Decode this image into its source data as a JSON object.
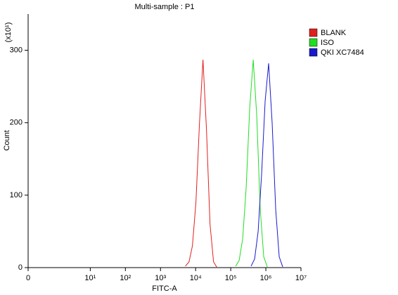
{
  "chart_data": {
    "type": "line",
    "title": "Multi-sample : P1",
    "x_label": "FITC-A",
    "y_label": "Count",
    "y_multiplier": "(x10¹)",
    "xscale": "symlog",
    "linthresh": 10,
    "xlim": [
      0,
      10000000
    ],
    "xticks": [
      0,
      {
        "value": 10,
        "label": "10¹"
      },
      {
        "value": 100,
        "label": "10²"
      },
      {
        "value": 1000,
        "label": "10³"
      },
      {
        "value": 10000,
        "label": "10⁴"
      },
      {
        "value": 100000,
        "label": "10⁵"
      },
      {
        "value": 1000000,
        "label": "10⁶"
      },
      {
        "value": 10000000,
        "label": "10⁷"
      }
    ],
    "ylim": [
      0,
      350
    ],
    "yticks": [
      0,
      100,
      200,
      300
    ],
    "legend": "top-right",
    "series": [
      {
        "name": "BLANK",
        "color": "#e0201e",
        "x": [
          5100,
          6500,
          8100,
          10200,
          12900,
          16200,
          20400,
          25700,
          32400,
          40700
        ],
        "values": [
          2,
          8,
          30,
          90,
          200,
          287,
          190,
          60,
          8,
          0
        ]
      },
      {
        "name": "ISO",
        "color": "#22dd22",
        "x": [
          138000,
          174000,
          219000,
          275000,
          347000,
          437000,
          550000,
          692000,
          871000,
          1100000
        ],
        "values": [
          2,
          10,
          40,
          110,
          220,
          287,
          210,
          80,
          15,
          1
        ]
      },
      {
        "name": "QKI XC7484",
        "color": "#1a1acc",
        "x": [
          380000,
          479000,
          603000,
          759000,
          955000,
          1200000,
          1510000,
          1910000,
          2400000,
          3020000
        ],
        "values": [
          2,
          12,
          50,
          130,
          230,
          282,
          200,
          80,
          15,
          1
        ]
      }
    ]
  }
}
